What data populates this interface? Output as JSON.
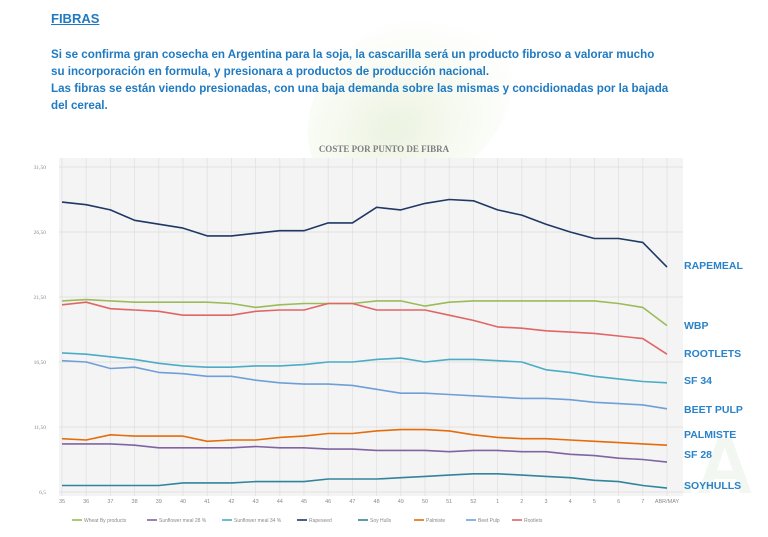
{
  "heading": "FIBRAS",
  "paragraphs": [
    "Si se confirma gran cosecha en Argentina para la soja, la cascarilla será un producto fibroso a valorar mucho su incorporación en formula, y presionara a productos de producción nacional.",
    "Las fibras se están viendo presionadas, con una baja demanda sobre las mismas y concidionadas por la bajada del cereal."
  ],
  "watermark": "LA",
  "chart_data": {
    "type": "line",
    "title": "COSTE POR PUNTO DE FIBRA",
    "xlabel": "",
    "ylabel": "",
    "ylim": [
      6.5,
      31.5
    ],
    "yticks": [
      6.5,
      11.5,
      16.5,
      21.5,
      26.5,
      31.5
    ],
    "ytick_labels": [
      "6,5",
      "11,50",
      "16,50",
      "21,50",
      "26,50",
      "31,50"
    ],
    "grid": true,
    "legend_position": "bottom",
    "categories": [
      "35",
      "36",
      "37",
      "38",
      "39",
      "40",
      "41",
      "42",
      "43",
      "44",
      "45",
      "46",
      "47",
      "48",
      "49",
      "50",
      "51",
      "52",
      "1",
      "2",
      "3",
      "4",
      "5",
      "6",
      "7",
      "ABR/MAY"
    ],
    "series": [
      {
        "name": "Wheat By products",
        "label": "WBP",
        "color": "#9bbb59",
        "values": [
          21.2,
          21.3,
          21.2,
          21.1,
          21.1,
          21.1,
          21.1,
          21.0,
          20.7,
          20.9,
          21.0,
          21.0,
          21.0,
          21.2,
          21.2,
          20.8,
          21.1,
          21.2,
          21.2,
          21.2,
          21.2,
          21.2,
          21.2,
          21.0,
          20.7,
          19.3
        ]
      },
      {
        "name": "Sunflower meal 28 %",
        "label": "SF 28",
        "color": "#8064a2",
        "values": [
          10.2,
          10.2,
          10.2,
          10.1,
          9.9,
          9.9,
          9.9,
          9.9,
          10.0,
          9.9,
          9.9,
          9.8,
          9.8,
          9.7,
          9.7,
          9.7,
          9.6,
          9.7,
          9.7,
          9.6,
          9.6,
          9.4,
          9.3,
          9.1,
          9.0,
          8.8
        ]
      },
      {
        "name": "Sunflower meal 34 %",
        "label": "SF 34",
        "color": "#4bacc6",
        "values": [
          17.2,
          17.1,
          16.9,
          16.7,
          16.4,
          16.2,
          16.1,
          16.1,
          16.2,
          16.2,
          16.3,
          16.5,
          16.5,
          16.7,
          16.8,
          16.5,
          16.7,
          16.7,
          16.6,
          16.5,
          15.9,
          15.7,
          15.4,
          15.2,
          15.0,
          14.9
        ]
      },
      {
        "name": "Rapeseed",
        "label": "RAPEMEAL",
        "color": "#1f3864",
        "values": [
          28.8,
          28.6,
          28.2,
          27.4,
          27.1,
          26.8,
          26.2,
          26.2,
          26.4,
          26.6,
          26.6,
          27.2,
          27.2,
          28.4,
          28.2,
          28.7,
          29.0,
          28.9,
          28.2,
          27.8,
          27.1,
          26.5,
          26.0,
          26.0,
          25.7,
          23.8
        ]
      },
      {
        "name": "Soy Hulls",
        "label": "SOYHULLS",
        "color": "#31849b",
        "values": [
          7.0,
          7.0,
          7.0,
          7.0,
          7.0,
          7.2,
          7.2,
          7.2,
          7.3,
          7.3,
          7.3,
          7.5,
          7.5,
          7.5,
          7.6,
          7.7,
          7.8,
          7.9,
          7.9,
          7.8,
          7.7,
          7.6,
          7.4,
          7.3,
          7.0,
          6.8
        ]
      },
      {
        "name": "Palmiste",
        "label": "PALMISTE",
        "color": "#e46c0a",
        "values": [
          10.6,
          10.5,
          10.9,
          10.8,
          10.8,
          10.8,
          10.4,
          10.5,
          10.5,
          10.7,
          10.8,
          11.0,
          11.0,
          11.2,
          11.3,
          11.3,
          11.2,
          10.9,
          10.7,
          10.6,
          10.6,
          10.5,
          10.4,
          10.3,
          10.2,
          10.1
        ]
      },
      {
        "name": "Beet Pulp",
        "label": "BEET PULP",
        "color": "#6f9fd8",
        "values": [
          16.6,
          16.5,
          16.0,
          16.1,
          15.7,
          15.6,
          15.4,
          15.4,
          15.1,
          14.9,
          14.8,
          14.8,
          14.7,
          14.4,
          14.1,
          14.1,
          14.0,
          13.9,
          13.8,
          13.7,
          13.7,
          13.6,
          13.4,
          13.3,
          13.2,
          12.9
        ]
      },
      {
        "name": "Rootlets",
        "label": "ROOTLETS",
        "color": "#e06666",
        "values": [
          20.9,
          21.1,
          20.6,
          20.5,
          20.4,
          20.1,
          20.1,
          20.1,
          20.4,
          20.5,
          20.5,
          21.0,
          21.0,
          20.5,
          20.5,
          20.5,
          20.1,
          19.7,
          19.2,
          19.1,
          18.9,
          18.8,
          18.7,
          18.5,
          18.3,
          17.1
        ]
      }
    ]
  }
}
